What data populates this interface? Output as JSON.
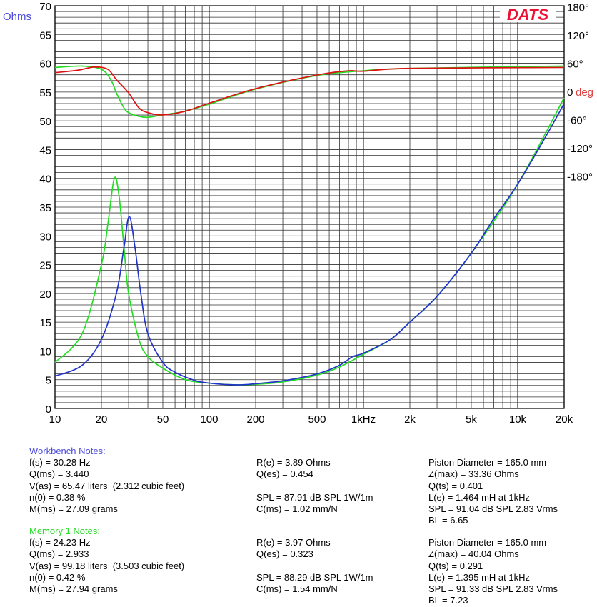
{
  "chart_data": {
    "type": "line",
    "logo": "DATS",
    "ylabel_left": "Ohms",
    "ylabel_right": "deg",
    "xscale": "log",
    "xlim": [
      10,
      20000
    ],
    "ylim": [
      0,
      70
    ],
    "y2lim": [
      -180,
      180
    ],
    "x_ticks": [
      "10",
      "20",
      "50",
      "100",
      "200",
      "500",
      "1kHz",
      "2k",
      "5k",
      "10k",
      "20k"
    ],
    "x_tick_values": [
      10,
      20,
      50,
      100,
      200,
      500,
      1000,
      2000,
      5000,
      10000,
      20000
    ],
    "y_ticks": [
      0,
      5,
      10,
      15,
      20,
      25,
      30,
      35,
      40,
      45,
      50,
      55,
      60,
      65,
      70
    ],
    "y2_ticks": [
      "180°",
      "120°",
      "60°",
      "0",
      "-60°",
      "-120°",
      "-180°"
    ],
    "y2_tick_values": [
      180,
      120,
      60,
      0,
      -60,
      -120,
      -180
    ],
    "grid": true,
    "series": [
      {
        "name": "Workbench impedance",
        "color": "#2233cc",
        "axis": "ohms",
        "x": [
          10,
          15,
          20,
          25,
          28,
          30.28,
          33,
          36,
          40,
          50,
          60,
          80,
          100,
          150,
          200,
          300,
          500,
          700,
          850,
          1000,
          1500,
          2000,
          3000,
          5000,
          7000,
          10000,
          15000,
          20000
        ],
        "y": [
          5.6,
          7.5,
          12,
          20,
          28,
          33.4,
          28,
          20,
          13,
          8,
          6.3,
          4.9,
          4.4,
          4.1,
          4.3,
          4.8,
          6.0,
          7.5,
          9.0,
          9.6,
          12,
          15,
          19.5,
          27,
          33,
          39,
          47,
          53
        ]
      },
      {
        "name": "Memory 1 impedance",
        "color": "#22dd22",
        "axis": "ohms",
        "x": [
          10,
          15,
          20,
          22,
          24.23,
          26,
          28,
          30,
          35,
          40,
          50,
          70,
          100,
          150,
          200,
          300,
          500,
          700,
          1000,
          1500,
          2000,
          3000,
          5000,
          10000,
          20000
        ],
        "y": [
          8,
          13,
          25,
          32,
          40,
          37,
          28,
          20,
          12,
          9,
          7,
          5,
          4.4,
          4.1,
          4.2,
          4.6,
          5.8,
          7.2,
          9.4,
          12,
          15,
          19.5,
          27,
          39,
          54
        ]
      },
      {
        "name": "Memory 1 phase",
        "color": "#22dd22",
        "axis": "deg",
        "x": [
          10,
          15,
          20,
          23,
          25,
          28,
          30,
          35,
          40,
          50,
          70,
          100,
          200,
          500,
          1000,
          2000,
          20000
        ],
        "y": [
          51,
          54,
          47,
          25,
          -3,
          -35,
          -45,
          -53,
          -55,
          -50,
          -42,
          -27,
          5,
          34,
          44,
          49,
          54
        ]
      },
      {
        "name": "Workbench phase",
        "color": "#dd1111",
        "axis": "deg",
        "x": [
          10,
          14,
          18,
          22,
          25,
          30,
          35,
          40,
          50,
          70,
          100,
          200,
          500,
          800,
          1000,
          2000,
          20000
        ],
        "y": [
          40,
          45,
          52,
          47,
          25,
          -3,
          -35,
          -45,
          -50,
          -42,
          -25,
          6,
          35,
          44,
          43,
          49,
          51
        ]
      }
    ]
  },
  "notes": {
    "workbench": {
      "title": "Workbench Notes:",
      "col1": [
        "f(s) = 30.28 Hz",
        "Q(ms) = 3.440",
        "V(as) = 65.47 liters  (2.312 cubic feet)",
        "n(0) = 0.38 %",
        "M(ms) = 27.09 grams"
      ],
      "col2": [
        "R(e) = 3.89 Ohms",
        "Q(es) = 0.454",
        "",
        "SPL = 87.91 dB SPL 1W/1m",
        "C(ms) = 1.02 mm/N"
      ],
      "col3": [
        "Piston Diameter = 165.0 mm",
        "Z(max) = 33.36 Ohms",
        "Q(ts) = 0.401",
        "L(e) = 1.464 mH at 1kHz",
        "SPL = 91.04 dB SPL 2.83 Vrms",
        "BL = 6.65"
      ]
    },
    "memory1": {
      "title": "Memory 1 Notes:",
      "col1": [
        "f(s) = 24.23 Hz",
        "Q(ms) = 2.933",
        "V(as) = 99.18 liters  (3.503 cubic feet)",
        "n(0) = 0.42 %",
        "M(ms) = 27.94 grams"
      ],
      "col2": [
        "R(e) = 3.97 Ohms",
        "Q(es) = 0.323",
        "",
        "SPL = 88.29 dB SPL 1W/1m",
        "C(ms) = 1.54 mm/N"
      ],
      "col3": [
        "Piston Diameter = 165.0 mm",
        "Z(max) = 40.04 Ohms",
        "Q(ts) = 0.291",
        "L(e) = 1.395 mH at 1kHz",
        "SPL = 91.33 dB SPL 2.83 Vrms",
        "BL = 7.23"
      ]
    }
  }
}
